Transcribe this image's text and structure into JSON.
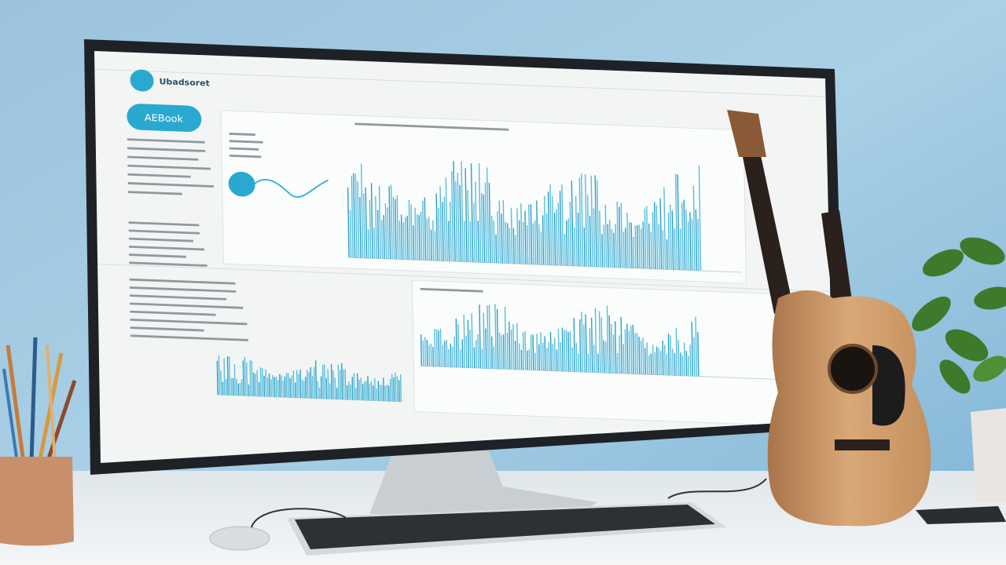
{
  "screen": {
    "logo": "Ubadsoret",
    "button": "AEBook"
  }
}
